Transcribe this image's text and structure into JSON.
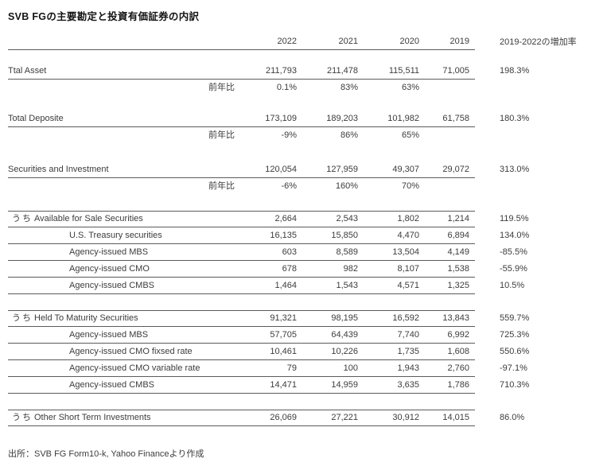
{
  "title": "SVB FGの主要勘定と投資有価証券の内訳",
  "table": {
    "years": [
      "2022",
      "2021",
      "2020",
      "2019"
    ],
    "growth_header": "2019-2022の増加率",
    "yoy_label": "前年比",
    "section_prefix": "うち",
    "groups": [
      {
        "boxed": false,
        "rows": [
          {
            "type": "metric",
            "label": "Ttal Asset",
            "values": [
              "211,793",
              "211,478",
              "115,511",
              "71,005"
            ],
            "growth": "198.3%"
          },
          {
            "type": "yoy",
            "label": "前年比",
            "values": [
              "0.1%",
              "83%",
              "63%",
              ""
            ],
            "growth": ""
          }
        ]
      },
      {
        "boxed": false,
        "rows": [
          {
            "type": "metric",
            "label": "Total Deposite",
            "values": [
              "173,109",
              "189,203",
              "101,982",
              "61,758"
            ],
            "growth": "180.3%"
          },
          {
            "type": "yoy",
            "label": "前年比",
            "values": [
              "-9%",
              "86%",
              "65%",
              ""
            ],
            "growth": ""
          }
        ]
      },
      {
        "boxed": false,
        "sec": true,
        "rows": [
          {
            "type": "metric",
            "label": "Securities and Investment",
            "values": [
              "120,054",
              "127,959",
              "49,307",
              "29,072"
            ],
            "growth": "313.0%"
          },
          {
            "type": "yoy",
            "label": "前年比",
            "values": [
              "-6%",
              "160%",
              "70%",
              ""
            ],
            "growth": ""
          }
        ]
      },
      {
        "boxed": true,
        "rows": [
          {
            "type": "section",
            "label": "Available for Sale Securities",
            "values": [
              "2,664",
              "2,543",
              "1,802",
              "1,214"
            ],
            "growth": "119.5%"
          },
          {
            "type": "sub",
            "label": "U.S. Treasury securities",
            "values": [
              "16,135",
              "15,850",
              "4,470",
              "6,894"
            ],
            "growth": "134.0%"
          },
          {
            "type": "sub",
            "label": "Agency-issued MBS",
            "values": [
              "603",
              "8,589",
              "13,504",
              "4,149"
            ],
            "growth": "-85.5%"
          },
          {
            "type": "sub",
            "label": "Agency-issued CMO",
            "values": [
              "678",
              "982",
              "8,107",
              "1,538"
            ],
            "growth": "-55.9%"
          },
          {
            "type": "sub",
            "label": "Agency-issued CMBS",
            "values": [
              "1,464",
              "1,543",
              "4,571",
              "1,325"
            ],
            "growth": "10.5%"
          }
        ]
      },
      {
        "boxed": true,
        "rows": [
          {
            "type": "section",
            "label": "Held To Maturity Securities",
            "values": [
              "91,321",
              "98,195",
              "16,592",
              "13,843"
            ],
            "growth": "559.7%"
          },
          {
            "type": "sub",
            "label": "Agency-issued MBS",
            "values": [
              "57,705",
              "64,439",
              "7,740",
              "6,992"
            ],
            "growth": "725.3%"
          },
          {
            "type": "sub",
            "label": "Agency-issued CMO fixsed rate",
            "values": [
              "10,461",
              "10,226",
              "1,735",
              "1,608"
            ],
            "growth": "550.6%"
          },
          {
            "type": "sub",
            "label": "Agency-issued CMO variable rate",
            "values": [
              "79",
              "100",
              "1,943",
              "2,760"
            ],
            "growth": "-97.1%"
          },
          {
            "type": "sub",
            "label": "Agency-issued CMBS",
            "values": [
              "14,471",
              "14,959",
              "3,635",
              "1,786"
            ],
            "growth": "710.3%"
          }
        ]
      },
      {
        "boxed": true,
        "rows": [
          {
            "type": "section",
            "label": "Other Short Term Investments",
            "values": [
              "26,069",
              "27,221",
              "30,912",
              "14,015"
            ],
            "growth": "86.0%"
          }
        ]
      }
    ]
  },
  "footer": {
    "source": "出所：SVB FG Form10-k, Yahoo Financeより作成"
  }
}
